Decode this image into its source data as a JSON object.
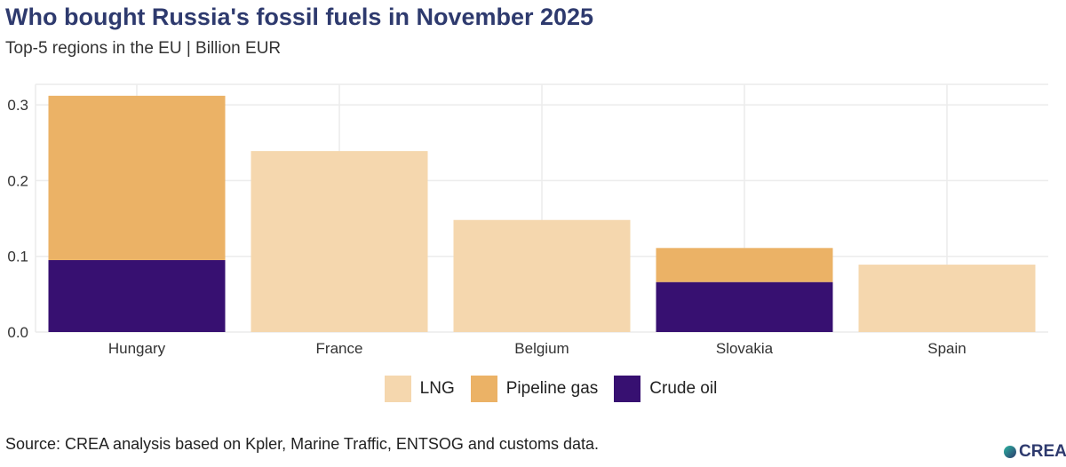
{
  "chart_data": {
    "type": "bar",
    "stacked": true,
    "title": "Who bought Russia's fossil fuels in November 2025",
    "subtitle": "Top-5 regions in the EU | Billion EUR",
    "categories": [
      "Hungary",
      "France",
      "Belgium",
      "Slovakia",
      "Spain"
    ],
    "series": [
      {
        "name": "Crude oil",
        "color": "#371071",
        "values": [
          0.095,
          0,
          0,
          0.066,
          0
        ]
      },
      {
        "name": "Pipeline gas",
        "color": "#ebb266",
        "values": [
          0.217,
          0,
          0,
          0.045,
          0
        ]
      },
      {
        "name": "LNG",
        "color": "#f5d7ae",
        "values": [
          0,
          0.239,
          0.148,
          0,
          0.089
        ]
      }
    ],
    "legend_order": [
      "LNG",
      "Pipeline gas",
      "Crude oil"
    ],
    "yticks": [
      "0.0",
      "0.1",
      "0.2",
      "0.3"
    ],
    "ylim": [
      0,
      0.325
    ],
    "grid": true,
    "legend_position": "bottom"
  },
  "source": "Source: CREA analysis based on Kpler, Marine Traffic, ENTSOG and customs data.",
  "logo_text": "CREA"
}
